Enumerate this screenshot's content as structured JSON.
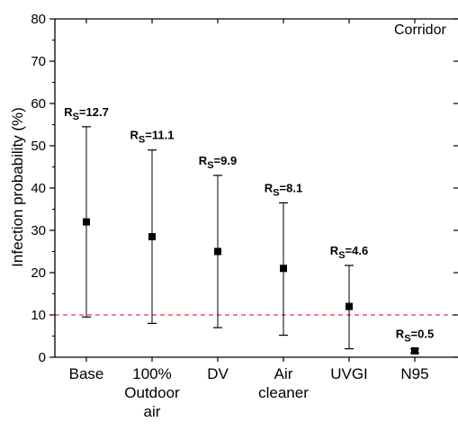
{
  "chart_data": {
    "type": "scatter",
    "annotation": "Corridor",
    "ylabel": "Infection probability (%)",
    "xlabel": "",
    "ylim": [
      0,
      80
    ],
    "yticks": [
      0,
      10,
      20,
      30,
      40,
      50,
      60,
      70,
      80
    ],
    "categories": [
      [
        "Base"
      ],
      [
        "100%",
        "Outdoor",
        "air"
      ],
      [
        "DV"
      ],
      [
        "Air",
        "cleaner"
      ],
      [
        "UVGI"
      ],
      [
        "N95"
      ]
    ],
    "points": [
      {
        "y": 32.0,
        "low": 9.5,
        "high": 54.5,
        "label_prefix": "R",
        "label_sub": "S",
        "label_value": "=12.7"
      },
      {
        "y": 28.5,
        "low": 8.0,
        "high": 49.0,
        "label_prefix": "R",
        "label_sub": "S",
        "label_value": "=11.1"
      },
      {
        "y": 25.0,
        "low": 7.0,
        "high": 43.0,
        "label_prefix": "R",
        "label_sub": "S",
        "label_value": "=9.9"
      },
      {
        "y": 21.0,
        "low": 5.2,
        "high": 36.5,
        "label_prefix": "R",
        "label_sub": "S",
        "label_value": "=8.1"
      },
      {
        "y": 12.0,
        "low": 2.0,
        "high": 21.7,
        "label_prefix": "R",
        "label_sub": "S",
        "label_value": "=4.6"
      },
      {
        "y": 1.5,
        "low": 1.0,
        "high": 2.0,
        "label_prefix": "R",
        "label_sub": "S",
        "label_value": "=0.5"
      }
    ],
    "reference_line": {
      "y": 10,
      "color": "#e8393d",
      "style": "dashed"
    },
    "colors": {
      "marker": "#000000",
      "axis": "#000000"
    }
  }
}
